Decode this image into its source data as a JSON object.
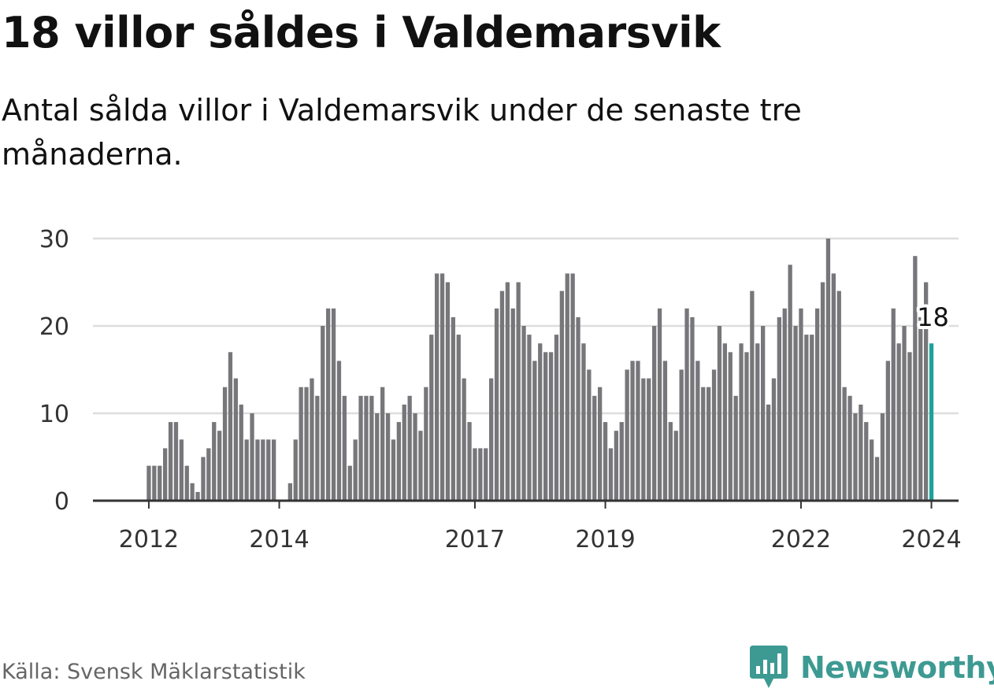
{
  "title": "18 villor såldes i Valdemarsvik",
  "subtitle": "Antal sålda villor i Valdemarsvik under de senaste tre månaderna.",
  "source": "Källa: Svensk Mäklarstatistik",
  "brand": {
    "name": "Newsworthy",
    "icon": "newsworthy-logo-icon"
  },
  "colors": {
    "bar": "#77767a",
    "highlight": "#1aa39a",
    "grid": "#dddddd",
    "axis": "#333333",
    "text": "#111111",
    "muted": "#666666",
    "brand": "#3d9a92"
  },
  "chart_data": {
    "type": "bar",
    "title": "18 villor såldes i Valdemarsvik",
    "subtitle": "Antal sålda villor i Valdemarsvik under de senaste tre månaderna.",
    "xlabel": "",
    "ylabel": "",
    "ylim": [
      0,
      30
    ],
    "yticks": [
      0,
      10,
      20,
      30
    ],
    "grid": true,
    "x_tick_labels": [
      "2012",
      "2014",
      "2017",
      "2019",
      "2022",
      "2024"
    ],
    "x_tick_positions": [
      7,
      31,
      67,
      91,
      127,
      151
    ],
    "highlight_label": "18",
    "highlight_index": 151,
    "series": [
      {
        "name": "Antal sålda villor",
        "values": [
          0,
          0,
          0,
          0,
          0,
          0,
          0,
          4,
          4,
          4,
          6,
          9,
          9,
          7,
          4,
          2,
          1,
          5,
          6,
          9,
          8,
          13,
          17,
          14,
          11,
          7,
          10,
          7,
          7,
          7,
          7,
          0,
          0,
          2,
          7,
          13,
          13,
          14,
          12,
          20,
          22,
          22,
          16,
          12,
          4,
          7,
          12,
          12,
          12,
          10,
          13,
          10,
          7,
          9,
          11,
          12,
          10,
          8,
          13,
          19,
          26,
          26,
          25,
          21,
          19,
          14,
          9,
          6,
          6,
          6,
          14,
          22,
          24,
          25,
          22,
          25,
          20,
          19,
          16,
          18,
          17,
          17,
          19,
          24,
          26,
          26,
          21,
          18,
          15,
          12,
          13,
          9,
          6,
          8,
          9,
          15,
          16,
          16,
          14,
          14,
          20,
          22,
          16,
          9,
          8,
          15,
          22,
          21,
          16,
          13,
          13,
          15,
          20,
          18,
          17,
          12,
          18,
          17,
          24,
          18,
          20,
          11,
          14,
          21,
          22,
          27,
          20,
          22,
          19,
          19,
          22,
          25,
          30,
          26,
          24,
          13,
          12,
          10,
          11,
          9,
          7,
          5,
          10,
          16,
          22,
          18,
          20,
          17,
          28,
          21,
          25,
          18
        ]
      }
    ]
  }
}
